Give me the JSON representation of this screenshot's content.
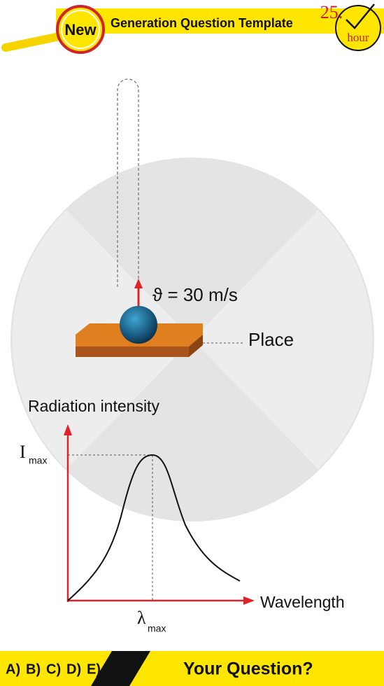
{
  "header": {
    "badge": "New",
    "title": "Generation Question Template",
    "clock_number": "25.",
    "clock_unit": "hour"
  },
  "motion": {
    "velocity_label": "ϑ = 30 m/s",
    "surface_label": "Place"
  },
  "graph": {
    "y_axis_label": "Radiation intensity",
    "peak_y_symbol": "I",
    "peak_y_subscript": "max",
    "peak_x_symbol": "λ",
    "peak_x_subscript": "max",
    "x_axis_label": "Wavelength"
  },
  "footer": {
    "options": [
      "A)",
      "B)",
      "C)",
      "D)",
      "E)"
    ],
    "prompt": "Your Question?"
  }
}
